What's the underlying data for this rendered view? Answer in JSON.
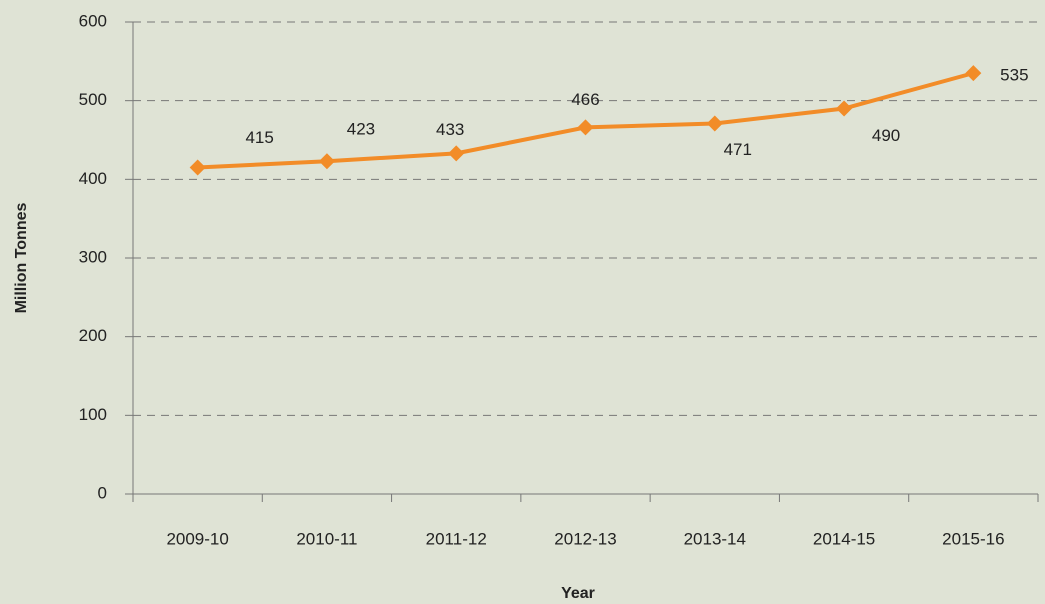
{
  "chart_data": {
    "type": "line",
    "categories": [
      "2009-10",
      "2010-11",
      "2011-12",
      "2012-13",
      "2013-14",
      "2014-15",
      "2015-16"
    ],
    "series": [
      {
        "name": "Million Tonnes",
        "color": "#f28c28",
        "values": [
          415,
          423,
          433,
          466,
          471,
          490,
          535
        ]
      }
    ],
    "ylim": [
      0,
      600
    ],
    "yticks": [
      0,
      100,
      200,
      300,
      400,
      500,
      600
    ],
    "grid": true,
    "xlabel": "Year",
    "ylabel": "Million Tonnes"
  }
}
